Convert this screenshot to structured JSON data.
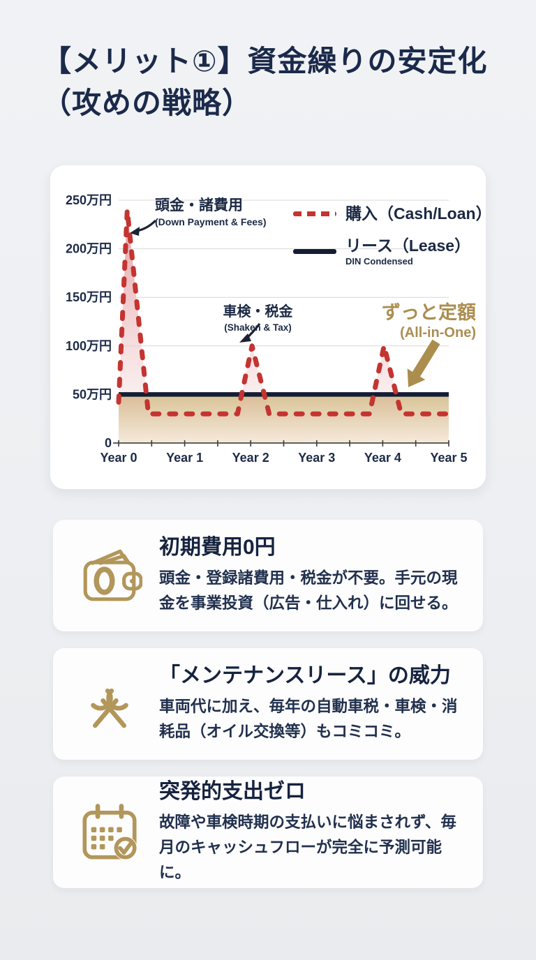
{
  "page": {
    "title_line1": "【メリット①】資金繰りの安定化",
    "title_line2": "（攻めの戦略）",
    "title_color": "#1b2a4a",
    "background_color": "#edeff2"
  },
  "chart_card": {
    "legend": [
      {
        "label": "購入（Cash/Loan）",
        "style": "dashed",
        "color": "#c43431"
      },
      {
        "label": "リース（Lease）",
        "sub": "DIN Condensed",
        "style": "solid",
        "color": "#131d33"
      }
    ],
    "annotations": {
      "down_payment": {
        "jp": "頭金・諸費用",
        "en": "(Down Payment & Fees)"
      },
      "shaken_tax": {
        "jp": "車検・税金",
        "en": "(Shaken & Tax)"
      },
      "flat_rate": {
        "jp": "ずっと定額",
        "en": "(All-in-One)",
        "color": "#ab8e50"
      }
    }
  },
  "chart_data": {
    "type": "line",
    "x_ticks": [
      "Year 0",
      "Year 1",
      "Year 2",
      "Year 3",
      "Year 4",
      "Year 5"
    ],
    "y_ticks": [
      "0",
      "50万円",
      "100万円",
      "150万円",
      "200万円",
      "250万円"
    ],
    "y_unit": "万円",
    "xlim": [
      0,
      5
    ],
    "ylim": [
      0,
      250
    ],
    "grid": true,
    "legend_position": "top-right",
    "series": [
      {
        "name": "購入（Cash/Loan）",
        "style": "dashed",
        "color": "#c43431",
        "fill": "pink-gradient",
        "points": [
          [
            0,
            42
          ],
          [
            0.13,
            240
          ],
          [
            0.45,
            30
          ],
          [
            1.8,
            30
          ],
          [
            2.02,
            100
          ],
          [
            2.28,
            30
          ],
          [
            3.8,
            30
          ],
          [
            4.02,
            100
          ],
          [
            4.28,
            30
          ],
          [
            5,
            30
          ]
        ]
      },
      {
        "name": "リース（Lease）",
        "style": "solid",
        "color": "#131d33",
        "fill": "tan-gradient",
        "points": [
          [
            0,
            50
          ],
          [
            5,
            50
          ]
        ]
      }
    ]
  },
  "cards": [
    {
      "icon": "wallet-zero-icon",
      "title": "初期費用0円",
      "body": "頭金・登録諸費用・税金が不要。手元の現金を事業投資（広告・仕入れ）に回せる。"
    },
    {
      "icon": "crossed-wrenches-icon",
      "title": "「メンテナンスリース」の威力",
      "body": "車両代に加え、毎年の自動車税・車検・消耗品（オイル交換等）もコミコミ。"
    },
    {
      "icon": "calendar-check-icon",
      "title": "突発的支出ゼロ",
      "body": "故障や車検時期の支払いに悩まされず、毎月のキャッシュフローが完全に予測可能に。"
    }
  ],
  "colors": {
    "accent_red": "#c43431",
    "navy": "#131d33",
    "gold_text": "#ab8e50",
    "gold_icon": "#b2965a",
    "tan_fill_top": "#d8c295",
    "card_bg": "#ffffff"
  }
}
